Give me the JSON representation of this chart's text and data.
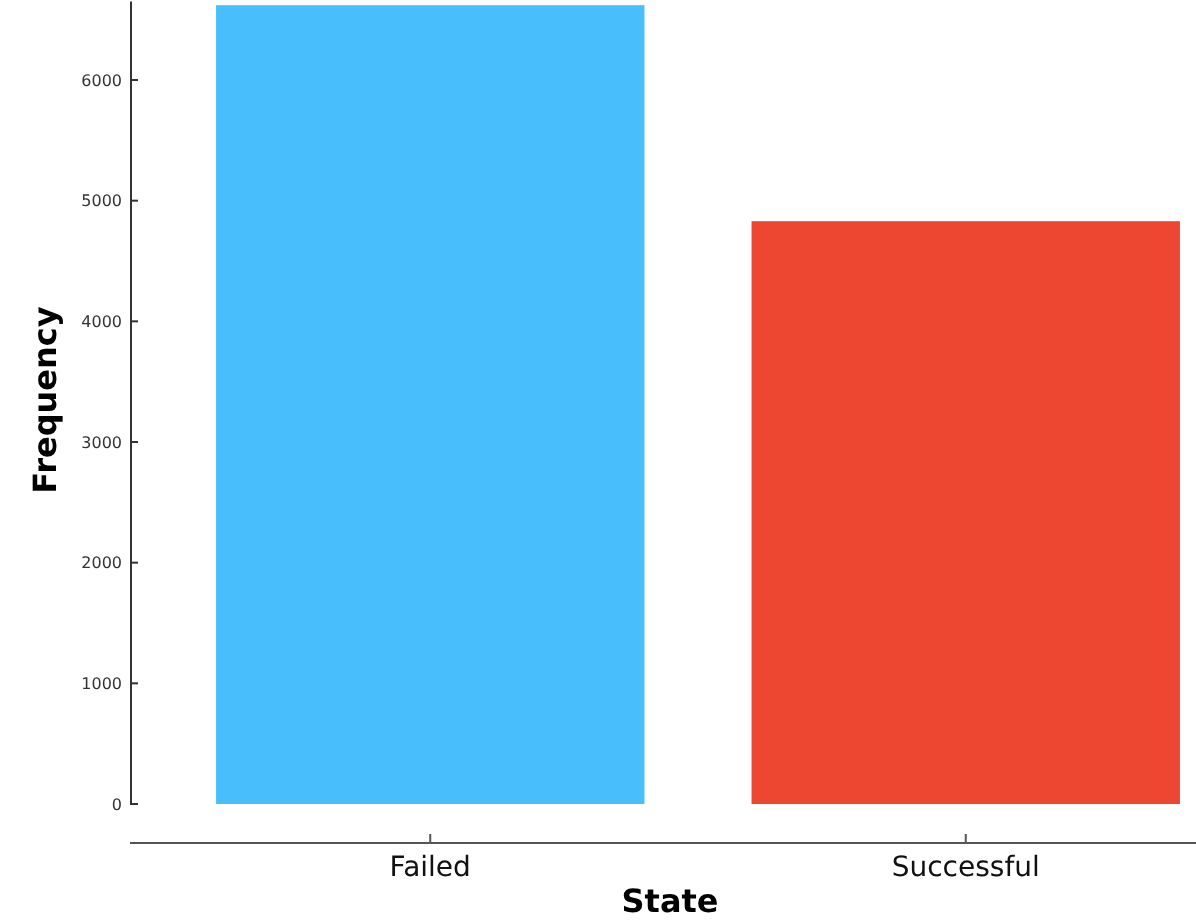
{
  "chart_data": {
    "type": "bar",
    "xlabel": "State",
    "ylabel": "Frequency",
    "categories": [
      "Failed",
      "Successful"
    ],
    "values": [
      6620,
      4830
    ],
    "colors": [
      "#48befc",
      "#ee4731"
    ],
    "ylim": [
      0,
      6650
    ],
    "yticks": [
      0,
      1000,
      2000,
      3000,
      4000,
      5000,
      6000
    ],
    "grid": false
  }
}
